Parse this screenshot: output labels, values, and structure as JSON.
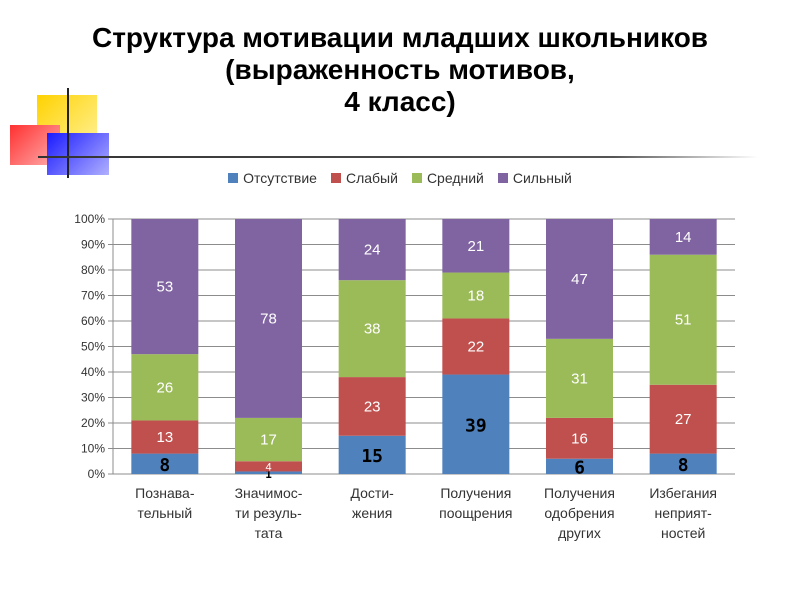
{
  "title": {
    "line1": "Структура мотивации младших школьников",
    "line2": "(выраженность мотивов,",
    "line3": "4 класс)"
  },
  "chart_data": {
    "type": "bar",
    "stacked": true,
    "percent_axis": true,
    "categories": [
      [
        "Познава-",
        "тельный"
      ],
      [
        "Значимос-",
        "ти резуль-",
        "тата"
      ],
      [
        "Дости-",
        "жения"
      ],
      [
        "Получения",
        "поощрения"
      ],
      [
        "Получения",
        "одобрения",
        "других"
      ],
      [
        "Избегания",
        "неприят-",
        "ностей"
      ]
    ],
    "series": [
      {
        "name": "Отсутствие",
        "color": "#4f81bd",
        "values": [
          8,
          1,
          15,
          39,
          6,
          8
        ]
      },
      {
        "name": "Слабый",
        "color": "#c0504d",
        "values": [
          13,
          4,
          23,
          22,
          16,
          27
        ]
      },
      {
        "name": "Средний",
        "color": "#9bbb59",
        "values": [
          26,
          17,
          38,
          18,
          31,
          51
        ]
      },
      {
        "name": "Сильный",
        "color": "#8064a2",
        "values": [
          53,
          78,
          24,
          21,
          47,
          14
        ]
      }
    ],
    "y_ticks": [
      "0%",
      "10%",
      "20%",
      "30%",
      "40%",
      "50%",
      "60%",
      "70%",
      "80%",
      "90%",
      "100%"
    ],
    "ylim": [
      0,
      100
    ],
    "grid": true,
    "legend_position": "top"
  }
}
